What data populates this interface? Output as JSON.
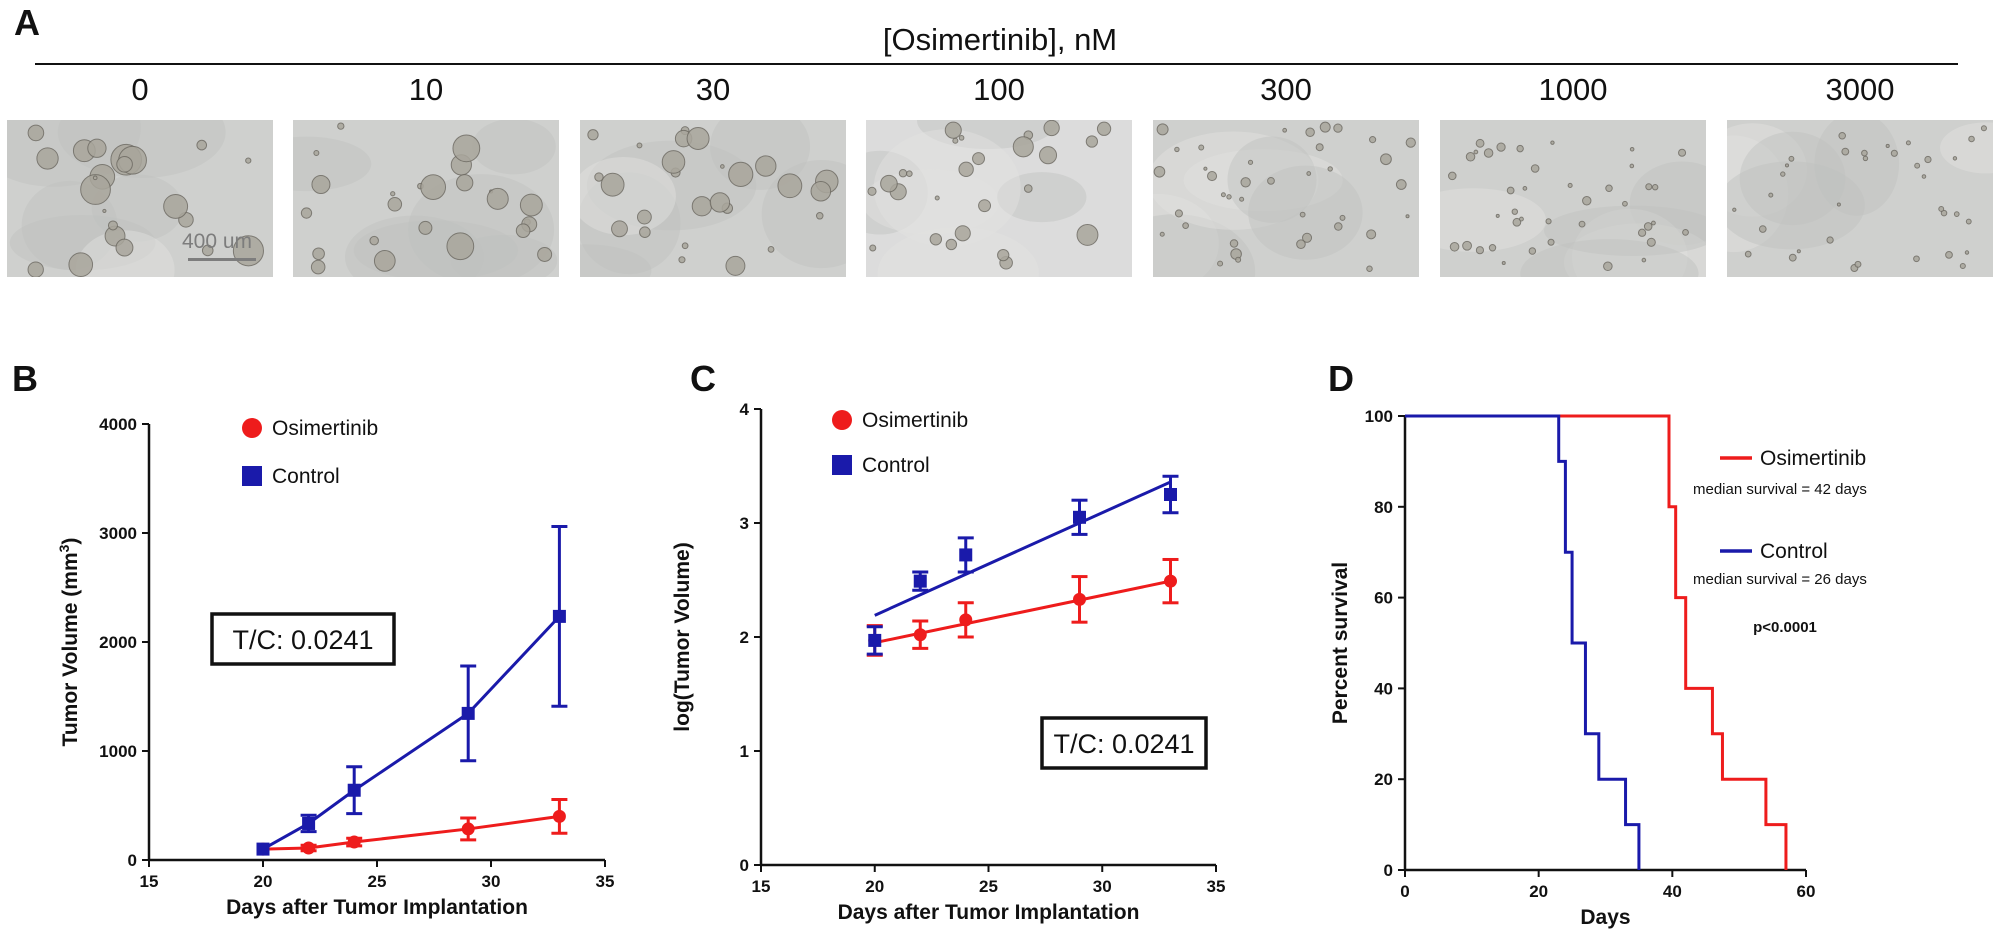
{
  "panel_a": {
    "letter": "A",
    "title": "[Osimertinib], nM",
    "doses": [
      "0",
      "10",
      "30",
      "100",
      "300",
      "1000",
      "3000"
    ],
    "scale_bar_label": "400 um"
  },
  "chart_data": [
    {
      "panel": "B",
      "type": "line",
      "title": "",
      "xlabel": "Days after Tumor Implantation",
      "ylabel": "Tumor Volume (mm",
      "ylabel_superscript": "3",
      "ylabel_suffix": ")",
      "xlim": [
        15,
        35
      ],
      "ylim": [
        0,
        4000
      ],
      "xticks": [
        15,
        20,
        25,
        30,
        35
      ],
      "yticks": [
        0,
        1000,
        2000,
        3000,
        4000
      ],
      "legend_position": "top-center",
      "annotation": "T/C: 0.0241",
      "series": [
        {
          "name": "Osimertinib",
          "color": "#ee1c1c",
          "marker": "circle",
          "x": [
            20,
            22,
            24,
            29,
            33
          ],
          "y": [
            100,
            110,
            165,
            285,
            400
          ],
          "err": [
            0,
            25,
            35,
            100,
            155
          ]
        },
        {
          "name": "Control",
          "color": "#1a1aaa",
          "marker": "square",
          "x": [
            20,
            22,
            24,
            29,
            33
          ],
          "y": [
            100,
            335,
            640,
            1345,
            2235
          ],
          "err": [
            0,
            75,
            215,
            435,
            825
          ]
        }
      ]
    },
    {
      "panel": "C",
      "type": "scatter",
      "title": "",
      "xlabel": "Days after Tumor Implantation",
      "ylabel": "log(Tumor Volume)",
      "xlim": [
        15,
        35
      ],
      "ylim": [
        0,
        4
      ],
      "xticks": [
        15,
        20,
        25,
        30,
        35
      ],
      "yticks": [
        0,
        1,
        2,
        3,
        4
      ],
      "legend_position": "top-left",
      "annotation": "T/C: 0.0241",
      "series": [
        {
          "name": "Osimertinib",
          "color": "#ee1c1c",
          "marker": "circle",
          "x": [
            20,
            22,
            24,
            29,
            33
          ],
          "y": [
            1.97,
            2.02,
            2.15,
            2.33,
            2.49
          ],
          "err": [
            0.13,
            0.12,
            0.15,
            0.2,
            0.19
          ],
          "fit": {
            "x": [
              20,
              33
            ],
            "y": [
              1.95,
              2.49
            ]
          }
        },
        {
          "name": "Control",
          "color": "#1a1aaa",
          "marker": "square",
          "x": [
            20,
            22,
            24,
            29,
            33
          ],
          "y": [
            1.97,
            2.49,
            2.72,
            3.05,
            3.25
          ],
          "err": [
            0.12,
            0.08,
            0.15,
            0.15,
            0.16
          ],
          "fit": {
            "x": [
              20,
              33
            ],
            "y": [
              2.19,
              3.36
            ]
          }
        }
      ]
    },
    {
      "panel": "D",
      "type": "line",
      "title": "",
      "xlabel": "Days",
      "ylabel": "Percent survival",
      "xlim": [
        0,
        60
      ],
      "ylim": [
        0,
        100
      ],
      "xticks": [
        0,
        20,
        40,
        60
      ],
      "yticks": [
        0,
        20,
        40,
        60,
        80,
        100
      ],
      "legend_position": "right",
      "p_value": "p<0.0001",
      "series": [
        {
          "name": "Osimertinib",
          "note": "median survival = 42 days",
          "color": "#ee1c1c",
          "x": [
            0,
            39.5,
            39.5,
            40.5,
            40.5,
            42,
            42,
            46,
            46,
            47.5,
            47.5,
            54,
            54,
            57,
            57
          ],
          "y": [
            100,
            100,
            80,
            80,
            60,
            60,
            40,
            40,
            30,
            30,
            20,
            20,
            10,
            10,
            0
          ]
        },
        {
          "name": "Control",
          "note": "median survival = 26 days",
          "color": "#1a1aaa",
          "x": [
            0,
            23,
            23,
            24,
            24,
            25,
            25,
            27,
            27,
            29,
            29,
            33,
            33,
            35,
            35
          ],
          "y": [
            100,
            100,
            90,
            90,
            70,
            70,
            50,
            50,
            30,
            30,
            20,
            20,
            10,
            10,
            0
          ]
        }
      ]
    }
  ]
}
